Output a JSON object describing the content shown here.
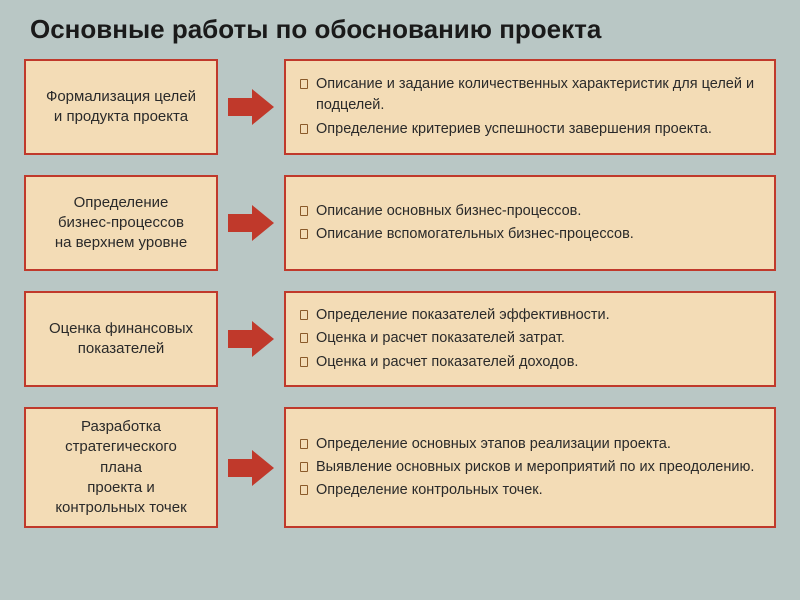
{
  "title": "Основные работы по обоснованию проекта",
  "colors": {
    "background": "#b9c7c5",
    "box_fill": "#f3dcb6",
    "box_border": "#c0392b",
    "arrow_fill": "#c0392b",
    "title_text": "#1a1a1a",
    "body_text": "#2a2a2a",
    "bullet_border": "#8a5a2a"
  },
  "arrow": {
    "width": 46,
    "height": 36
  },
  "rows": [
    {
      "left": "Формализация целей\nи продукта проекта",
      "right": [
        "Описание и задание количественных характеристик для целей и подцелей.",
        "Определение критериев успешности завершения проекта."
      ]
    },
    {
      "left": "Определение\nбизнес-процессов\nна верхнем уровне",
      "right": [
        "Описание основных бизнес-процессов.",
        "Описание вспомогательных бизнес-процессов."
      ]
    },
    {
      "left": "Оценка финансовых\nпоказателей",
      "right": [
        "Определение показателей эффективности.",
        "Оценка и расчет показателей затрат.",
        "Оценка и расчет показателей доходов."
      ]
    },
    {
      "left": "Разработка\nстратегического\nплана\nпроекта и\nконтрольных точек",
      "right": [
        "Определение основных этапов реализации проекта.",
        "Выявление основных рисков и мероприятий по их преодолению.",
        "Определение контрольных точек."
      ]
    }
  ]
}
